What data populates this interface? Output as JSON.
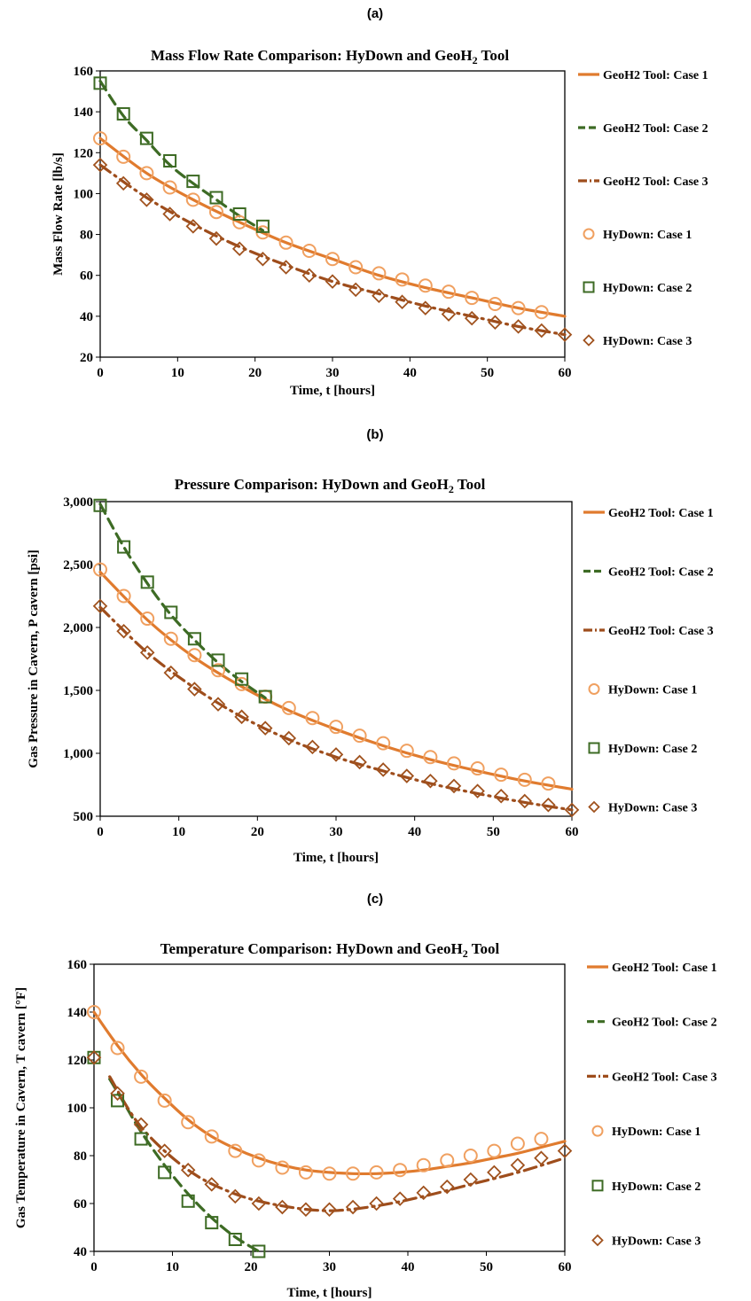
{
  "colors": {
    "case1": "#e07b2e",
    "case2": "#3d6b24",
    "case3": "#9e4d1c",
    "marker1": "#f0a060",
    "marker2": "#3d6b24",
    "marker3": "#a0521e"
  },
  "chart_data": [
    {
      "panel_label": "(a)",
      "type": "line",
      "title": "Mass Flow Rate Comparison: HyDown and GeoH",
      "title_sub": "2",
      "title_tail": " Tool",
      "xlabel": "Time, t [hours]",
      "ylabel": "Mass Flow Rate [lb/s]",
      "xlim": [
        0,
        60
      ],
      "ylim": [
        20,
        160
      ],
      "xticks": [
        0,
        10,
        20,
        30,
        40,
        50,
        60
      ],
      "xtick_labels": [
        "0",
        "10",
        "20",
        "30",
        "40",
        "50",
        "60"
      ],
      "yticks": [
        20,
        40,
        60,
        80,
        100,
        120,
        140,
        160
      ],
      "ytick_labels": [
        "20",
        "40",
        "60",
        "80",
        "100",
        "120",
        "140",
        "160"
      ],
      "legend_position": "right",
      "legend": [
        "GeoH2 Tool: Case 1",
        "GeoH2 Tool: Case 2",
        "GeoH2 Tool: Case 3",
        "HyDown: Case 1",
        "HyDown: Case 2",
        "HyDown: Case 3"
      ],
      "series": [
        {
          "name": "GeoH2 Tool: Case 1",
          "style": "solid",
          "x": [
            0,
            6,
            12,
            18,
            24,
            30,
            36,
            42,
            48,
            54,
            60
          ],
          "y": [
            127,
            110,
            97,
            86,
            76,
            68,
            60,
            54,
            49,
            44,
            40
          ]
        },
        {
          "name": "GeoH2 Tool: Case 2",
          "style": "dashed",
          "x": [
            0,
            3,
            6,
            9,
            12,
            15,
            18,
            21
          ],
          "y": [
            155,
            138,
            126,
            114,
            105,
            97,
            89,
            82
          ]
        },
        {
          "name": "GeoH2 Tool: Case 3",
          "style": "dashdot",
          "x": [
            0,
            6,
            12,
            18,
            24,
            30,
            36,
            42,
            48,
            54,
            60
          ],
          "y": [
            114,
            98,
            85,
            74,
            65,
            57,
            51,
            45,
            40,
            35,
            31
          ]
        },
        {
          "name": "HyDown: Case 1",
          "marker": "circle",
          "x": [
            0,
            3,
            6,
            9,
            12,
            15,
            18,
            21,
            24,
            27,
            30,
            33,
            36,
            39,
            42,
            45,
            48,
            51,
            54,
            57
          ],
          "y": [
            127,
            118,
            110,
            103,
            97,
            91,
            86,
            81,
            76,
            72,
            68,
            64,
            61,
            58,
            55,
            52,
            49,
            46,
            44,
            42
          ]
        },
        {
          "name": "HyDown: Case 2",
          "marker": "square",
          "x": [
            0,
            3,
            6,
            9,
            12,
            15,
            18,
            21
          ],
          "y": [
            154,
            139,
            127,
            116,
            106,
            98,
            90,
            84
          ]
        },
        {
          "name": "HyDown: Case 3",
          "marker": "diamond",
          "x": [
            0,
            3,
            6,
            9,
            12,
            15,
            18,
            21,
            24,
            27,
            30,
            33,
            36,
            39,
            42,
            45,
            48,
            51,
            54,
            57,
            60
          ],
          "y": [
            114,
            105,
            97,
            90,
            84,
            78,
            73,
            68,
            64,
            60,
            57,
            53,
            50,
            47,
            44,
            41,
            39,
            37,
            35,
            33,
            31
          ]
        }
      ]
    },
    {
      "panel_label": "(b)",
      "type": "line",
      "title": "Pressure Comparison: HyDown  and GeoH",
      "title_sub": "2",
      "title_tail": " Tool",
      "xlabel": "Time, t [hours]",
      "ylabel": "Gas Pressure in Cavern, P cavern [psi]",
      "xlim": [
        0,
        60
      ],
      "ylim": [
        500,
        3000
      ],
      "xticks": [
        0,
        10,
        20,
        30,
        40,
        50,
        60
      ],
      "xtick_labels": [
        "0",
        "10",
        "20",
        "30",
        "40",
        "50",
        "60"
      ],
      "yticks": [
        500,
        1000,
        1500,
        2000,
        2500,
        3000
      ],
      "ytick_labels": [
        "500",
        "1,000",
        "1,500",
        "2,000",
        "2,500",
        "3,000"
      ],
      "legend_position": "right",
      "legend": [
        "GeoH2 Tool: Case 1",
        "GeoH2 Tool: Case 2",
        "GeoH2 Tool: Case 3",
        "HyDown: Case 1",
        "HyDown: Case 2",
        "HyDown: Case 3"
      ],
      "series": [
        {
          "name": "GeoH2 Tool: Case 1",
          "style": "solid",
          "x": [
            0,
            6,
            12,
            18,
            24,
            30,
            36,
            42,
            48,
            54,
            60
          ],
          "y": [
            2440,
            2060,
            1760,
            1530,
            1340,
            1190,
            1060,
            950,
            860,
            780,
            715
          ]
        },
        {
          "name": "GeoH2 Tool: Case 2",
          "style": "dashed",
          "x": [
            0,
            3,
            6,
            9,
            12,
            15,
            18,
            21
          ],
          "y": [
            2980,
            2640,
            2350,
            2100,
            1900,
            1720,
            1570,
            1440
          ]
        },
        {
          "name": "GeoH2 Tool: Case 3",
          "style": "dashdot",
          "x": [
            0,
            6,
            12,
            18,
            24,
            30,
            36,
            42,
            48,
            54,
            60
          ],
          "y": [
            2160,
            1800,
            1520,
            1290,
            1110,
            970,
            860,
            760,
            680,
            610,
            550
          ]
        },
        {
          "name": "HyDown: Case 1",
          "marker": "circle",
          "x": [
            0,
            3,
            6,
            9,
            12,
            15,
            18,
            21,
            24,
            27,
            30,
            33,
            36,
            39,
            42,
            45,
            48,
            51,
            54,
            57
          ],
          "y": [
            2460,
            2250,
            2070,
            1910,
            1780,
            1660,
            1550,
            1450,
            1360,
            1280,
            1210,
            1140,
            1080,
            1020,
            970,
            920,
            880,
            830,
            790,
            760
          ]
        },
        {
          "name": "HyDown: Case 2",
          "marker": "square",
          "x": [
            0,
            3,
            6,
            9,
            12,
            15,
            18,
            21
          ],
          "y": [
            2970,
            2640,
            2360,
            2120,
            1910,
            1740,
            1590,
            1450
          ]
        },
        {
          "name": "HyDown: Case 3",
          "marker": "diamond",
          "x": [
            0,
            3,
            6,
            9,
            12,
            15,
            18,
            21,
            24,
            27,
            30,
            33,
            36,
            39,
            42,
            45,
            48,
            51,
            54,
            57,
            60
          ],
          "y": [
            2170,
            1970,
            1800,
            1640,
            1510,
            1390,
            1290,
            1200,
            1120,
            1050,
            990,
            930,
            870,
            820,
            780,
            740,
            700,
            660,
            620,
            590,
            550
          ]
        }
      ]
    },
    {
      "panel_label": "(c)",
      "type": "line",
      "title": "Temperature Comparison: HyDown and GeoH",
      "title_sub": "2",
      "title_tail": " Tool",
      "xlabel": "Time, t [hours]",
      "ylabel": "Gas Temperature in Cavern, T cavern [°F]",
      "xlim": [
        0,
        60
      ],
      "ylim": [
        40,
        160
      ],
      "xticks": [
        0,
        10,
        20,
        30,
        40,
        50,
        60
      ],
      "xtick_labels": [
        "0",
        "10",
        "20",
        "30",
        "40",
        "50",
        "60"
      ],
      "yticks": [
        40,
        60,
        80,
        100,
        120,
        140,
        160
      ],
      "ytick_labels": [
        "40",
        "60",
        "80",
        "100",
        "120",
        "140",
        "160"
      ],
      "legend_position": "right",
      "legend": [
        "GeoH2 Tool: Case 1",
        "GeoH2 Tool: Case 2",
        "GeoH2 Tool: Case 3",
        "HyDown: Case 1",
        "HyDown: Case 2",
        "HyDown: Case 3"
      ],
      "series": [
        {
          "name": "GeoH2 Tool: Case 1",
          "style": "solid",
          "x": [
            0,
            3,
            6,
            9,
            12,
            15,
            18,
            21,
            24,
            27,
            30,
            33,
            36,
            39,
            42,
            45,
            48,
            51,
            54,
            57,
            60
          ],
          "y": [
            140,
            126,
            114,
            104,
            95,
            88,
            83,
            79,
            76,
            74,
            73,
            72.5,
            72.5,
            73,
            74,
            75.5,
            77,
            79,
            81,
            83.5,
            86
          ]
        },
        {
          "name": "GeoH2 Tool: Case 2",
          "style": "dashed",
          "x": [
            2,
            4,
            6,
            9,
            12,
            15,
            18,
            21
          ],
          "y": [
            112,
            101,
            90,
            76,
            64,
            54,
            46,
            40
          ]
        },
        {
          "name": "GeoH2 Tool: Case 3",
          "style": "dashdot",
          "x": [
            2,
            6,
            12,
            18,
            24,
            30,
            36,
            42,
            48,
            54,
            60
          ],
          "y": [
            113,
            92,
            74,
            64,
            59,
            57,
            59,
            63,
            68,
            73,
            79
          ]
        },
        {
          "name": "HyDown: Case 1",
          "marker": "circle",
          "x": [
            0,
            3,
            6,
            9,
            12,
            15,
            18,
            21,
            24,
            27,
            30,
            33,
            36,
            39,
            42,
            45,
            48,
            51,
            54,
            57
          ],
          "y": [
            140,
            125,
            113,
            103,
            94,
            88,
            82,
            78,
            75,
            73,
            72.5,
            72.5,
            73,
            74,
            76,
            78,
            80,
            82,
            85,
            87
          ]
        },
        {
          "name": "HyDown: Case 2",
          "marker": "square",
          "x": [
            0,
            3,
            6,
            9,
            12,
            15,
            18,
            21
          ],
          "y": [
            121,
            103,
            87,
            73,
            61,
            52,
            45,
            40
          ]
        },
        {
          "name": "HyDown: Case 3",
          "marker": "diamond",
          "x": [
            0,
            3,
            6,
            9,
            12,
            15,
            18,
            21,
            24,
            27,
            30,
            33,
            36,
            39,
            42,
            45,
            48,
            51,
            54,
            57,
            60
          ],
          "y": [
            121,
            106,
            93,
            82,
            74,
            68,
            63,
            60,
            58.5,
            57.5,
            57.5,
            58.5,
            60,
            62,
            64.5,
            67,
            70,
            73,
            76,
            79,
            82
          ]
        }
      ]
    }
  ]
}
